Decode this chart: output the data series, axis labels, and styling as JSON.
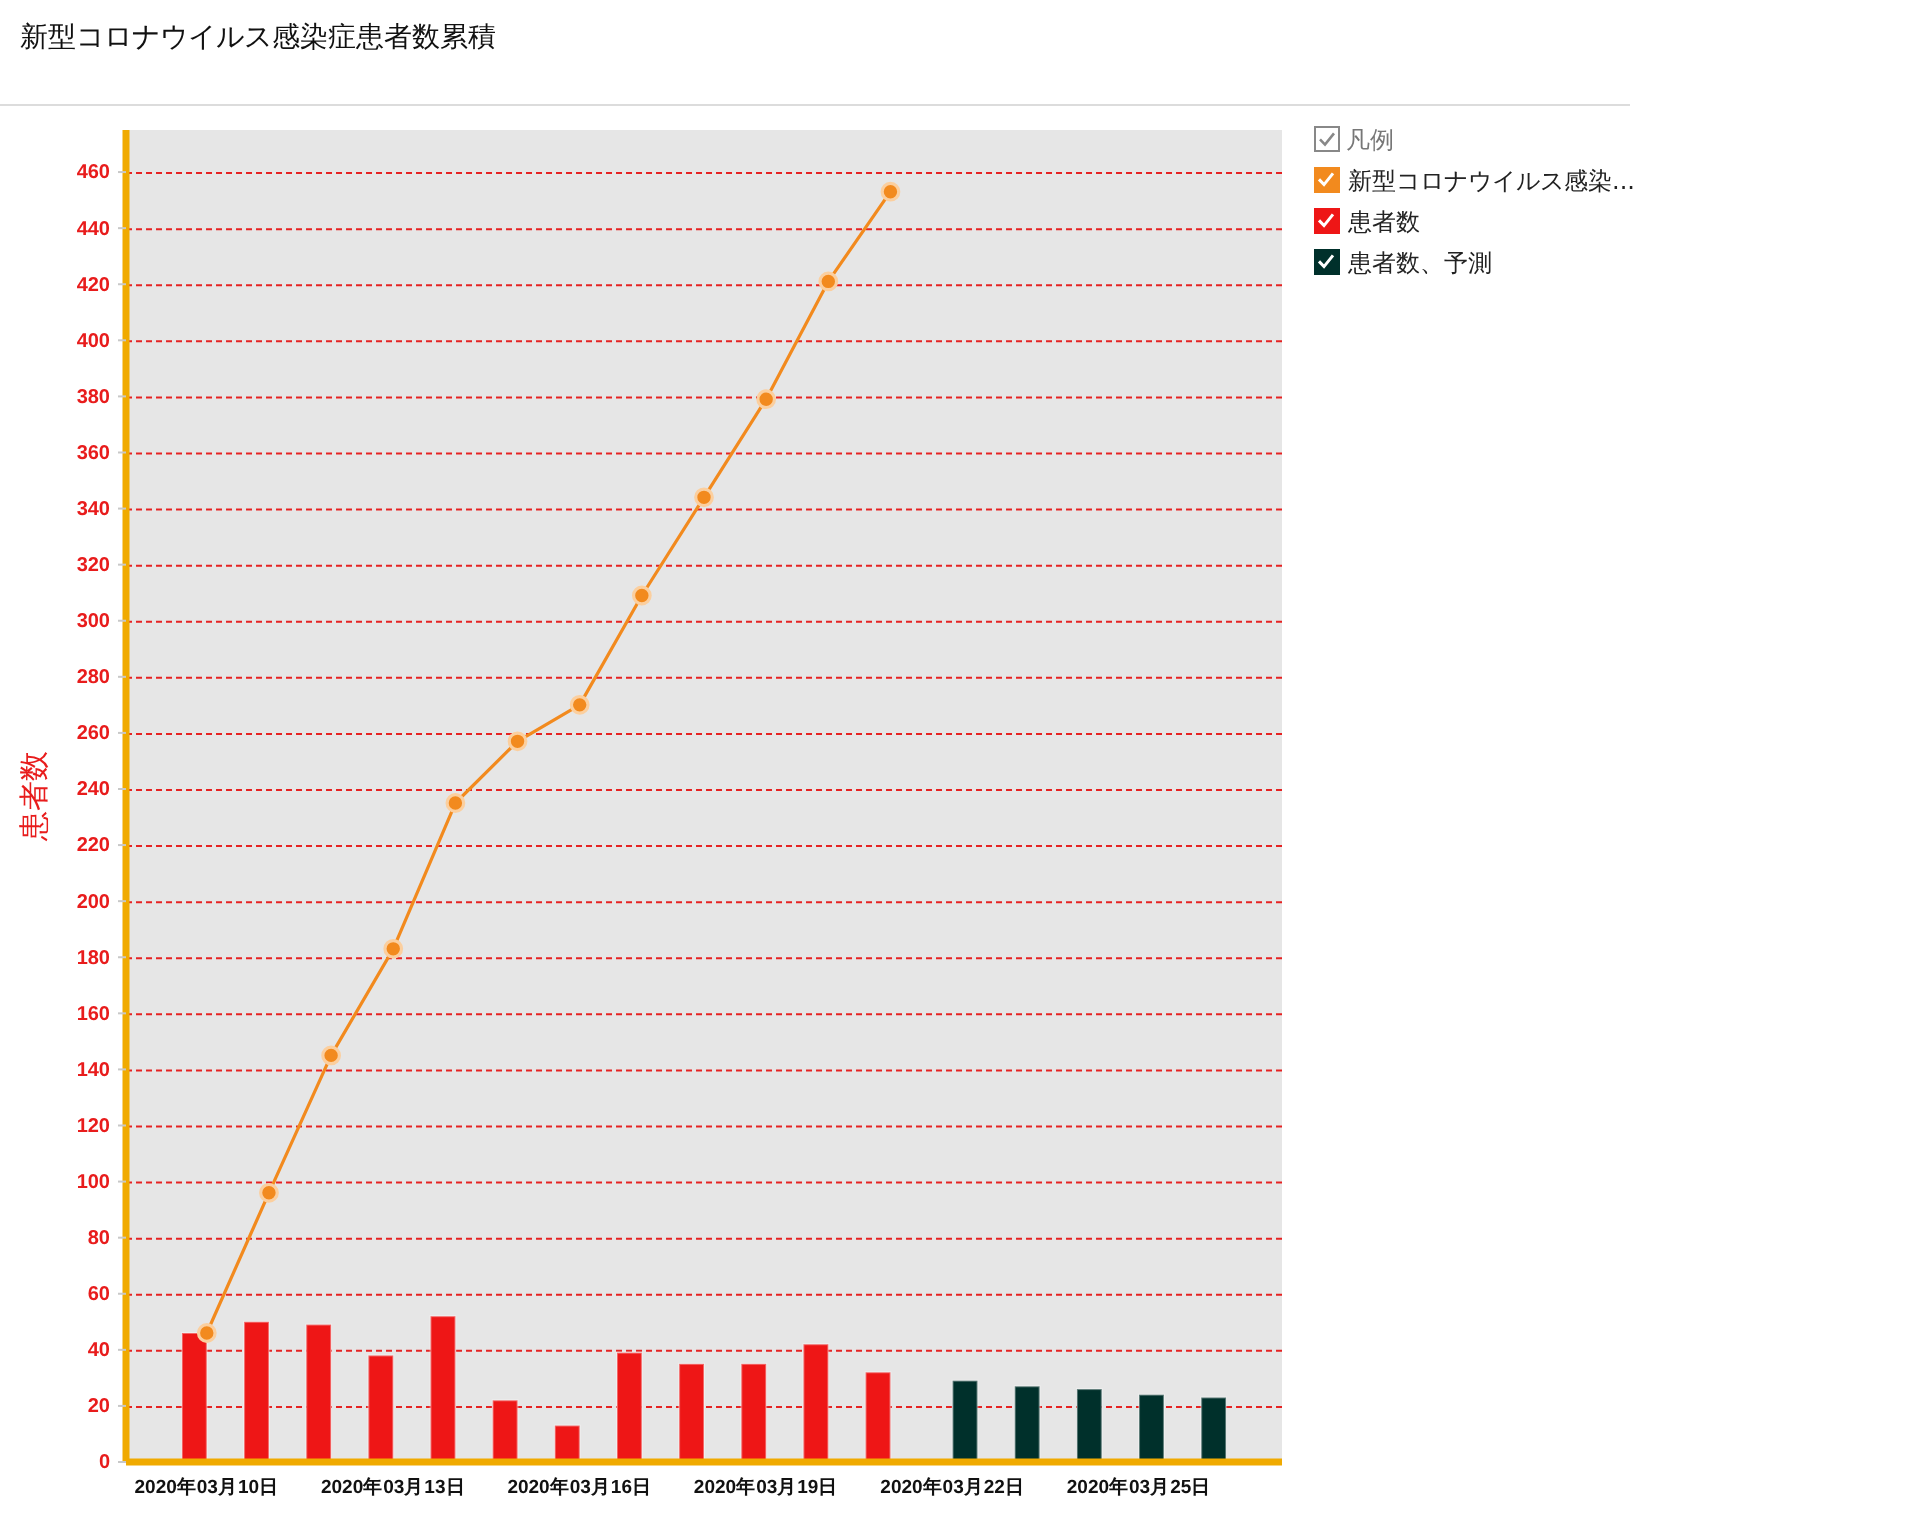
{
  "chart_data": {
    "type": "bar",
    "title": "新型コロナウイルス感染症患者数累積",
    "ylabel": "患者数",
    "legend_title": "凡例",
    "categories": [
      "2020年03月10日",
      null,
      null,
      "2020年03月13日",
      null,
      null,
      "2020年03月16日",
      null,
      null,
      "2020年03月19日",
      null,
      null,
      "2020年03月22日",
      null,
      null,
      "2020年03月25日",
      null
    ],
    "series": [
      {
        "name": "新型コロナウイルス感染...",
        "type": "line",
        "color": "#f28a1e",
        "values": [
          46,
          96,
          145,
          183,
          235,
          257,
          270,
          309,
          344,
          379,
          421,
          453,
          null,
          null,
          null,
          null,
          null
        ]
      },
      {
        "name": "患者数",
        "color": "#ee1616",
        "values": [
          46,
          50,
          49,
          38,
          52,
          22,
          13,
          39,
          35,
          35,
          42,
          32,
          null,
          null,
          null,
          null,
          null
        ]
      },
      {
        "name": "患者数、予測",
        "color": "#00302b",
        "values": [
          null,
          null,
          null,
          null,
          null,
          null,
          null,
          null,
          null,
          null,
          null,
          null,
          29,
          27,
          26,
          24,
          23
        ]
      }
    ],
    "ylim": [
      0,
      475
    ],
    "yticks": [
      0,
      20,
      40,
      60,
      80,
      100,
      120,
      140,
      160,
      180,
      200,
      220,
      240,
      260,
      280,
      300,
      320,
      340,
      360,
      380,
      400,
      420,
      440,
      460
    ],
    "grid": "y",
    "legend": "right",
    "marker": "circle"
  }
}
